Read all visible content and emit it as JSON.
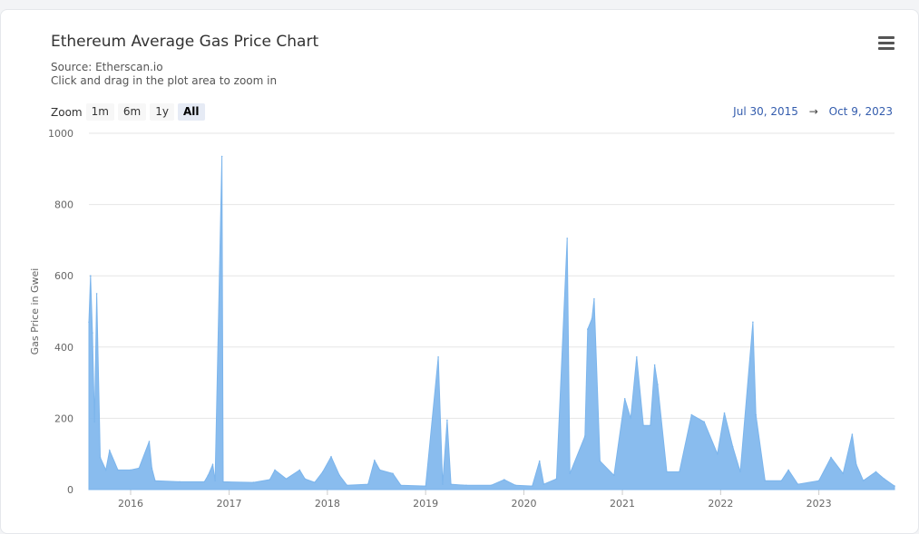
{
  "chart_data": {
    "type": "area",
    "title": "Ethereum Average Gas Price Chart",
    "subtitle_lines": [
      "Source: Etherscan.io",
      "Click and drag in the plot area to zoom in"
    ],
    "xlabel": "",
    "ylabel": "Gas Price in Gwei",
    "ylim": [
      0,
      1000
    ],
    "yticks": [
      0,
      200,
      400,
      600,
      800,
      1000
    ],
    "xlim": [
      "2015-07-30",
      "2023-10-09"
    ],
    "xticks": [
      "2016",
      "2017",
      "2018",
      "2019",
      "2020",
      "2021",
      "2022",
      "2023"
    ],
    "grid": true,
    "legend": "none",
    "color": "#7cb5ec",
    "series": [
      {
        "values_by_date": [
          [
            "2015-07-30",
            470
          ],
          [
            "2015-08-05",
            600
          ],
          [
            "2015-08-12",
            440
          ],
          [
            "2015-08-20",
            190
          ],
          [
            "2015-08-28",
            550
          ],
          [
            "2015-09-10",
            90
          ],
          [
            "2015-10-01",
            55
          ],
          [
            "2015-10-15",
            110
          ],
          [
            "2015-11-15",
            55
          ],
          [
            "2016-01-01",
            55
          ],
          [
            "2016-02-01",
            60
          ],
          [
            "2016-03-10",
            135
          ],
          [
            "2016-03-20",
            60
          ],
          [
            "2016-04-01",
            25
          ],
          [
            "2016-07-01",
            22
          ],
          [
            "2016-10-01",
            22
          ],
          [
            "2016-10-15",
            40
          ],
          [
            "2016-11-01",
            70
          ],
          [
            "2016-11-10",
            25
          ],
          [
            "2016-12-05",
            935
          ],
          [
            "2016-12-10",
            22
          ],
          [
            "2017-04-01",
            20
          ],
          [
            "2017-06-01",
            28
          ],
          [
            "2017-06-20",
            55
          ],
          [
            "2017-08-01",
            30
          ],
          [
            "2017-09-20",
            55
          ],
          [
            "2017-10-10",
            30
          ],
          [
            "2017-11-15",
            20
          ],
          [
            "2017-12-15",
            50
          ],
          [
            "2018-01-15",
            92
          ],
          [
            "2018-02-15",
            40
          ],
          [
            "2018-03-15",
            12
          ],
          [
            "2018-06-01",
            15
          ],
          [
            "2018-06-25",
            82
          ],
          [
            "2018-07-15",
            55
          ],
          [
            "2018-09-01",
            45
          ],
          [
            "2018-10-01",
            12
          ],
          [
            "2019-01-01",
            10
          ],
          [
            "2019-02-17",
            372
          ],
          [
            "2019-03-05",
            15
          ],
          [
            "2019-03-22",
            195
          ],
          [
            "2019-04-05",
            15
          ],
          [
            "2019-06-01",
            12
          ],
          [
            "2019-09-01",
            12
          ],
          [
            "2019-10-20",
            28
          ],
          [
            "2019-12-01",
            12
          ],
          [
            "2020-02-01",
            10
          ],
          [
            "2020-02-28",
            80
          ],
          [
            "2020-03-15",
            15
          ],
          [
            "2020-05-01",
            30
          ],
          [
            "2020-06-10",
            705
          ],
          [
            "2020-06-20",
            45
          ],
          [
            "2020-08-15",
            150
          ],
          [
            "2020-08-25",
            450
          ],
          [
            "2020-09-10",
            480
          ],
          [
            "2020-09-18",
            535
          ],
          [
            "2020-10-10",
            80
          ],
          [
            "2020-12-01",
            40
          ],
          [
            "2021-01-10",
            255
          ],
          [
            "2021-02-01",
            200
          ],
          [
            "2021-02-23",
            372
          ],
          [
            "2021-03-20",
            180
          ],
          [
            "2021-04-15",
            180
          ],
          [
            "2021-05-01",
            350
          ],
          [
            "2021-05-12",
            295
          ],
          [
            "2021-06-15",
            50
          ],
          [
            "2021-08-01",
            50
          ],
          [
            "2021-09-15",
            210
          ],
          [
            "2021-11-01",
            190
          ],
          [
            "2021-12-20",
            100
          ],
          [
            "2022-01-15",
            215
          ],
          [
            "2022-02-15",
            120
          ],
          [
            "2022-03-15",
            50
          ],
          [
            "2022-05-01",
            470
          ],
          [
            "2022-05-12",
            210
          ],
          [
            "2022-06-15",
            25
          ],
          [
            "2022-08-15",
            25
          ],
          [
            "2022-09-10",
            55
          ],
          [
            "2022-10-15",
            15
          ],
          [
            "2023-01-01",
            25
          ],
          [
            "2023-02-15",
            90
          ],
          [
            "2023-04-01",
            45
          ],
          [
            "2023-05-05",
            155
          ],
          [
            "2023-05-20",
            70
          ],
          [
            "2023-06-15",
            25
          ],
          [
            "2023-08-01",
            50
          ],
          [
            "2023-09-01",
            30
          ],
          [
            "2023-10-09",
            10
          ]
        ]
      }
    ]
  },
  "range_selector": {
    "zoom_label": "Zoom",
    "buttons": [
      "1m",
      "6m",
      "1y",
      "All"
    ],
    "active": "All",
    "from": "Jul 30, 2015",
    "arrow": "→",
    "to": "Oct 9, 2023"
  },
  "menu": {
    "icon": "hamburger-menu-icon"
  }
}
